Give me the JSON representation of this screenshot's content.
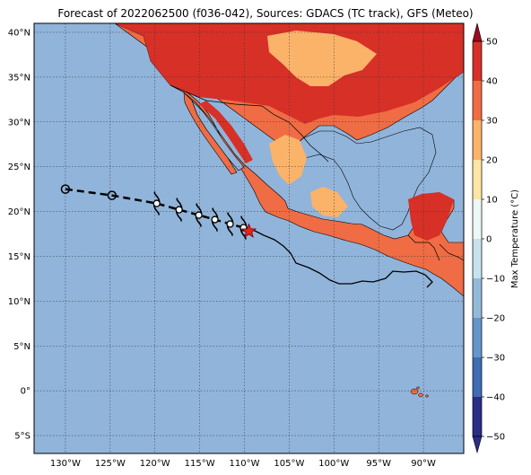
{
  "title": "Forecast of 2022062500 (f036-042), Sources: GDACS (TC track), GFS (Meteo)",
  "map": {
    "lon_range": [
      -133.5,
      -85.5
    ],
    "lat_range": [
      -7,
      41
    ],
    "lat_ticks": [
      "40°N",
      "35°N",
      "30°N",
      "25°N",
      "20°N",
      "15°N",
      "10°N",
      "5°N",
      "0°",
      "5°S"
    ],
    "lat_values": [
      40,
      35,
      30,
      25,
      20,
      15,
      10,
      5,
      0,
      -5
    ],
    "lon_ticks": [
      "130°W",
      "125°W",
      "120°W",
      "115°W",
      "110°W",
      "105°W",
      "100°W",
      "95°W",
      "90°W"
    ],
    "lon_values": [
      -130,
      -125,
      -120,
      -115,
      -110,
      -105,
      -100,
      -95,
      -90
    ],
    "grid": "dotted",
    "ocean_color": "#91b4da"
  },
  "colorbar": {
    "label": "Max Temperature (°C)",
    "ticks": [
      "50",
      "40",
      "30",
      "20",
      "10",
      "0",
      "−10",
      "−20",
      "−30",
      "−40",
      "−50"
    ],
    "tick_values": [
      50,
      40,
      30,
      20,
      10,
      0,
      -10,
      -20,
      -30,
      -40,
      -50
    ],
    "bins": [
      {
        "from": -50,
        "to": -40,
        "color": "#2a2e86"
      },
      {
        "from": -40,
        "to": -30,
        "color": "#3f6cb3"
      },
      {
        "from": -30,
        "to": -20,
        "color": "#6596cb"
      },
      {
        "from": -20,
        "to": -10,
        "color": "#93bad9"
      },
      {
        "from": -10,
        "to": 0,
        "color": "#c7e2ee"
      },
      {
        "from": 0,
        "to": 10,
        "color": "#ecf7f6"
      },
      {
        "from": 10,
        "to": 20,
        "color": "#fde6a5"
      },
      {
        "from": 20,
        "to": 30,
        "color": "#fbb36a"
      },
      {
        "from": 30,
        "to": 40,
        "color": "#ef6c45"
      },
      {
        "from": 40,
        "to": 50,
        "color": "#d73027"
      },
      {
        "from": 50,
        "to": 60,
        "color": "#9e0b25"
      }
    ]
  },
  "track": {
    "past_points": [
      [
        -130,
        22.5
      ],
      [
        -124.8,
        21.8
      ]
    ],
    "forecast_points": [
      [
        -119.8,
        20.9
      ],
      [
        -117.3,
        20.2
      ],
      [
        -115.1,
        19.6
      ],
      [
        -113.3,
        19.1
      ],
      [
        -111.6,
        18.6
      ],
      [
        -110.1,
        18.2
      ]
    ],
    "current": [
      -109.5,
      17.8
    ]
  }
}
